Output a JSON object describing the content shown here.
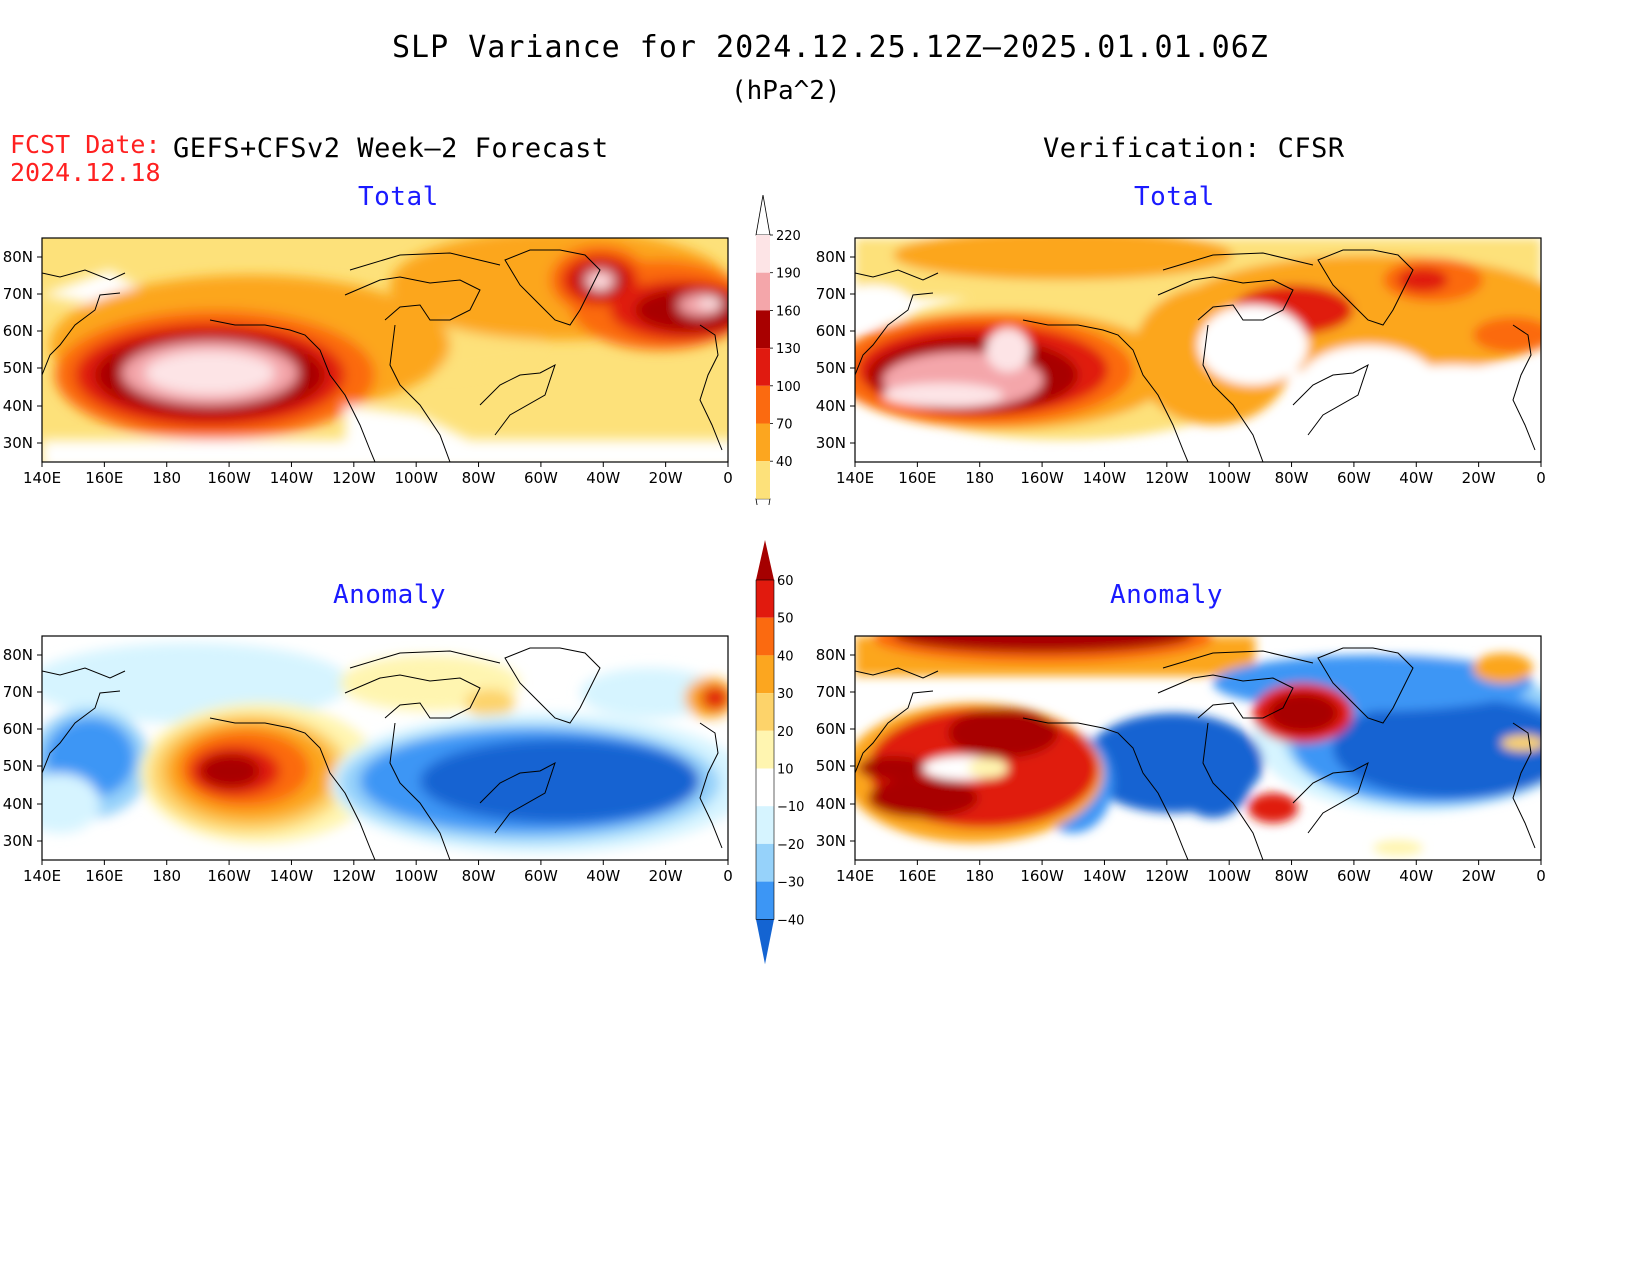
{
  "title": "SLP Variance for 2024.12.25.12Z–2025.01.01.06Z",
  "units": "(hPa^2)",
  "fcst_date_label": "FCST Date:",
  "fcst_date": "2024.12.18",
  "left_header": "GEFS+CFSv2 Week–2 Forecast",
  "right_header": "Verification: CFSR",
  "panels": [
    {
      "title": "Total"
    },
    {
      "title": "Total"
    },
    {
      "title": "Anomaly"
    },
    {
      "title": "Anomaly"
    }
  ],
  "lat_ticks": [
    "80N",
    "70N",
    "60N",
    "50N",
    "40N",
    "30N"
  ],
  "lon_ticks": [
    "140E",
    "160E",
    "180",
    "160W",
    "140W",
    "120W",
    "100W",
    "80W",
    "60W",
    "40W",
    "20W",
    "0"
  ],
  "total_colorbar": {
    "levels": [
      "40",
      "70",
      "100",
      "130",
      "160",
      "190",
      "220"
    ],
    "colors": [
      "#fde17a",
      "#fca61f",
      "#fb6a10",
      "#e01a10",
      "#a80000",
      "#f4a6aa",
      "#fde4e6"
    ]
  },
  "anomaly_colorbar": {
    "levels": [
      "60",
      "50",
      "40",
      "30",
      "20",
      "10",
      "−10",
      "−20",
      "−30",
      "−40"
    ],
    "colors": [
      "#a50000",
      "#e11a0e",
      "#fb6a10",
      "#fca61f",
      "#fdd36a",
      "#fff5b0",
      "#ffffff",
      "#d6f4ff",
      "#96d2fa",
      "#3c96f5",
      "#1464d2"
    ]
  }
}
